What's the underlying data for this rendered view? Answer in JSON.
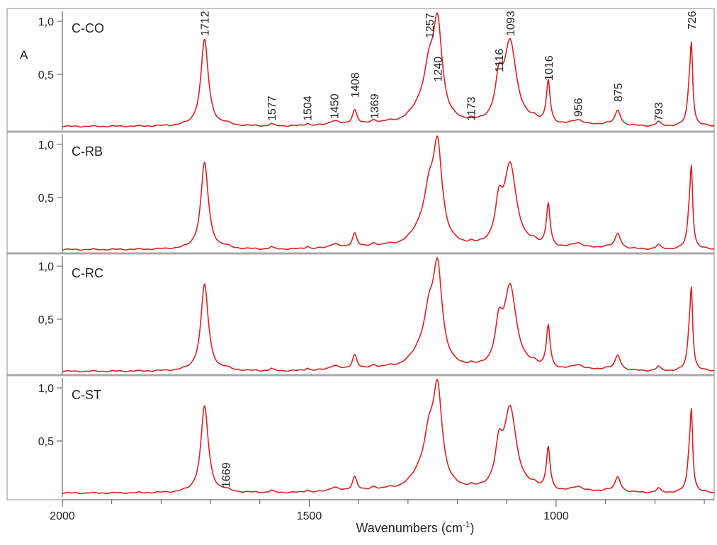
{
  "chart_data": {
    "type": "line",
    "title": "",
    "xlabel": "Wavenumbers (cm⁻¹)",
    "ylabel": "A",
    "xlim": [
      2000,
      680
    ],
    "ylim": [
      0,
      1.0
    ],
    "x_ticks": [
      "2000",
      "1500",
      "1000"
    ],
    "y_ticks": [
      "1,0",
      "0,5"
    ],
    "grid": false,
    "line_color": "#e02020",
    "peaks": [
      {
        "x": 1712,
        "h": 0.82,
        "w": 9
      },
      {
        "x": 1669,
        "h": 0.015,
        "w": 10
      },
      {
        "x": 1577,
        "h": 0.02,
        "w": 4
      },
      {
        "x": 1504,
        "h": 0.025,
        "w": 4
      },
      {
        "x": 1450,
        "h": 0.045,
        "w": 12
      },
      {
        "x": 1408,
        "h": 0.14,
        "w": 6
      },
      {
        "x": 1369,
        "h": 0.035,
        "w": 9
      },
      {
        "x": 1340,
        "h": 0.015,
        "w": 12
      },
      {
        "x": 1270,
        "h": 0.16,
        "w": 28
      },
      {
        "x": 1257,
        "h": 0.35,
        "w": 12
      },
      {
        "x": 1240,
        "h": 0.86,
        "w": 11
      },
      {
        "x": 1173,
        "h": 0.02,
        "w": 6
      },
      {
        "x": 1116,
        "h": 0.34,
        "w": 9
      },
      {
        "x": 1093,
        "h": 0.77,
        "w": 15
      },
      {
        "x": 1045,
        "h": 0.04,
        "w": 10
      },
      {
        "x": 1016,
        "h": 0.4,
        "w": 4.5
      },
      {
        "x": 956,
        "h": 0.05,
        "w": 14
      },
      {
        "x": 900,
        "h": 0.02,
        "w": 12
      },
      {
        "x": 875,
        "h": 0.14,
        "w": 7
      },
      {
        "x": 793,
        "h": 0.04,
        "w": 5
      },
      {
        "x": 730,
        "h": 0.3,
        "w": 5
      },
      {
        "x": 726,
        "h": 0.62,
        "w": 3
      }
    ],
    "series": [
      {
        "name": "C-CO",
        "scale": 1.0,
        "peak_labels": [
          {
            "text": "1712",
            "x": 1712,
            "y": 0.86
          },
          {
            "text": "1577",
            "x": 1577,
            "y": 0.06
          },
          {
            "text": "1504",
            "x": 1504,
            "y": 0.06
          },
          {
            "text": "1450",
            "x": 1450,
            "y": 0.08
          },
          {
            "text": "1408",
            "x": 1408,
            "y": 0.28
          },
          {
            "text": "1369",
            "x": 1369,
            "y": 0.08
          },
          {
            "text": "1257",
            "x": 1257,
            "y": 0.84
          },
          {
            "text": "1240",
            "x": 1240,
            "y": 0.43
          },
          {
            "text": "1173",
            "x": 1173,
            "y": 0.06
          },
          {
            "text": "1116",
            "x": 1116,
            "y": 0.52
          },
          {
            "text": "1093",
            "x": 1093,
            "y": 0.86
          },
          {
            "text": "1016",
            "x": 1016,
            "y": 0.44
          },
          {
            "text": "956",
            "x": 956,
            "y": 0.1
          },
          {
            "text": "875",
            "x": 875,
            "y": 0.24
          },
          {
            "text": "793",
            "x": 793,
            "y": 0.06
          },
          {
            "text": "726",
            "x": 726,
            "y": 0.92
          }
        ]
      },
      {
        "name": "C-RB",
        "scale": 1.0,
        "peak_labels": []
      },
      {
        "name": "C-RC",
        "scale": 1.0,
        "peak_labels": []
      },
      {
        "name": "C-ST",
        "scale": 1.0,
        "peak_labels": [
          {
            "text": "1669",
            "x": 1669,
            "y": 0.06
          }
        ]
      }
    ]
  }
}
